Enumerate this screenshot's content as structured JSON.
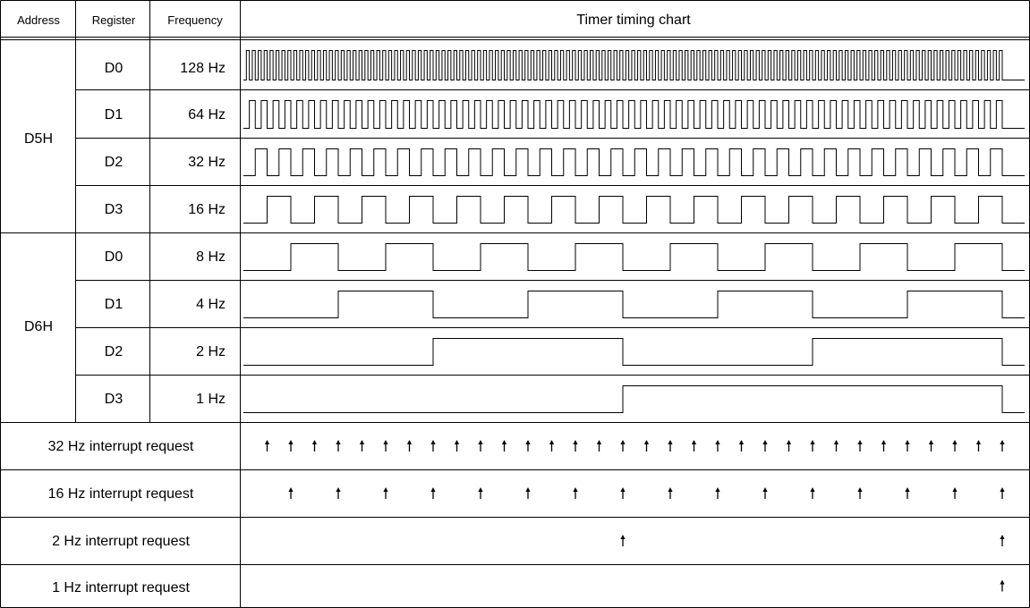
{
  "header": {
    "address": "Address",
    "register": "Register",
    "frequency": "Frequency",
    "chart_title": "Timer timing chart"
  },
  "groups": [
    {
      "address": "D5H",
      "rows": [
        {
          "register": "D0",
          "frequency": "128 Hz",
          "hz": 128
        },
        {
          "register": "D1",
          "frequency": "64 Hz",
          "hz": 64
        },
        {
          "register": "D2",
          "frequency": "32 Hz",
          "hz": 32
        },
        {
          "register": "D3",
          "frequency": "16 Hz",
          "hz": 16
        }
      ]
    },
    {
      "address": "D6H",
      "rows": [
        {
          "register": "D0",
          "frequency": "8 Hz",
          "hz": 8
        },
        {
          "register": "D1",
          "frequency": "4 Hz",
          "hz": 4
        },
        {
          "register": "D2",
          "frequency": "2 Hz",
          "hz": 2
        },
        {
          "register": "D3",
          "frequency": "1 Hz",
          "hz": 1
        }
      ]
    }
  ],
  "interrupts": [
    {
      "label": "32 Hz interrupt request",
      "hz": 32
    },
    {
      "label": "16 Hz interrupt request",
      "hz": 16
    },
    {
      "label": "2 Hz interrupt request",
      "hz": 2
    },
    {
      "label": "1 Hz interrupt request",
      "hz": 1
    }
  ],
  "time_span_s": 1
}
